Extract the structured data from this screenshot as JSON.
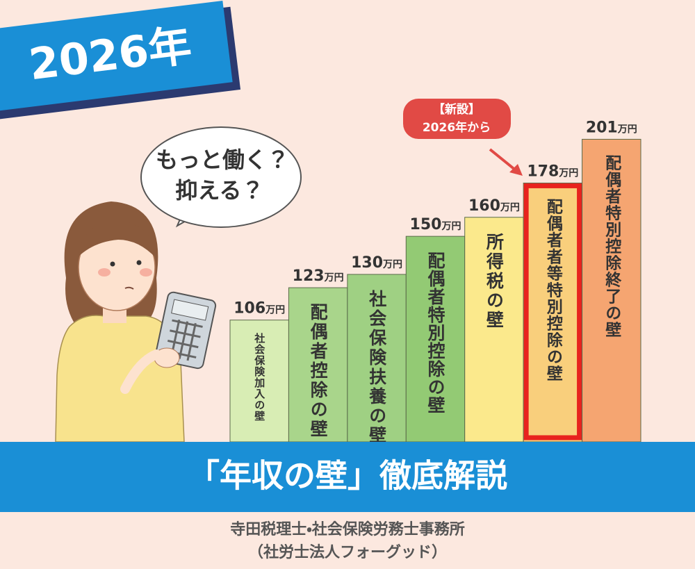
{
  "chart_data": {
    "type": "bar",
    "badge": "2026年",
    "title": "「年収の壁」徹底解説",
    "categories": [
      "社会保険加入の壁",
      "配偶者控除の壁",
      "社会保険扶養の壁",
      "配偶者特別控除の壁",
      "所得税の壁",
      "配偶者者等特別控除の壁",
      "配偶者特別控除終了の壁"
    ],
    "values": [
      106,
      123,
      130,
      150,
      160,
      178,
      201
    ],
    "value_labels": [
      "106万円",
      "123万円",
      "130万円",
      "150万円",
      "160万円",
      "178万円",
      "201万円"
    ],
    "colors": [
      "#d8edb4",
      "#a9d58b",
      "#9fd083",
      "#93ca74",
      "#fbe98c",
      "#f9cf7c",
      "#f5a571"
    ],
    "highlight": 5,
    "highlight_color": "#e8231e",
    "ylim": [
      42,
      207
    ],
    "speech_bubble": [
      "もっと働く？",
      "抑える？"
    ],
    "callout": [
      "【新設】",
      "2026年から"
    ],
    "footer": [
      "寺田税理士・社会保険労務士事務所",
      "（社労士法人フォーグッド）"
    ]
  }
}
